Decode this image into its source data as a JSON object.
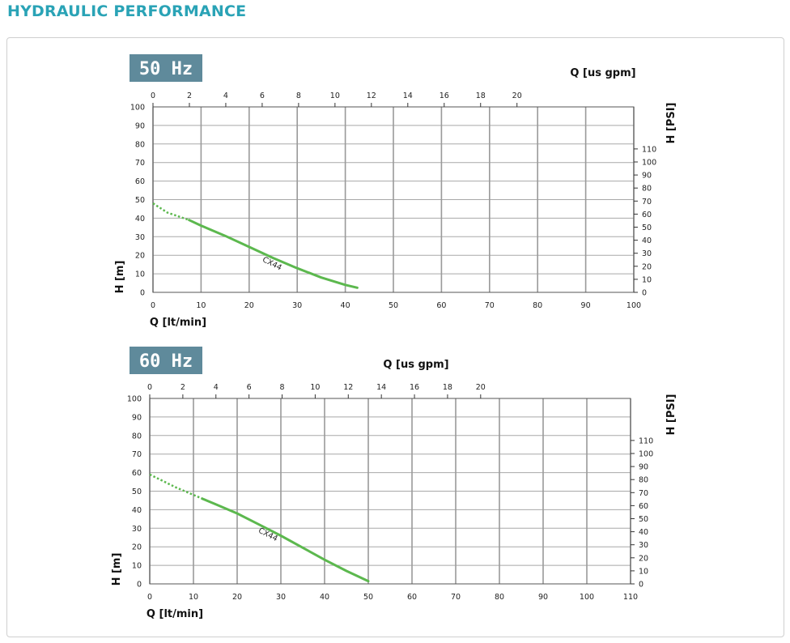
{
  "page": {
    "title": "HYDRAULIC PERFORMANCE"
  },
  "colors": {
    "title": "#2aa3b6",
    "badge": "#5f8a9b",
    "curve": "#5cb84e",
    "grid": "#999999",
    "text": "#222222"
  },
  "chart_data": [
    {
      "type": "line",
      "badge": "50 Hz",
      "xlabel": "Q [lt/min]",
      "ylabel": "H [m]",
      "x2label": "Q [us gpm]",
      "y2label": "H [PSI]",
      "xlim": [
        0,
        100
      ],
      "ylim": [
        0,
        100
      ],
      "x2lim": [
        0,
        26.417
      ],
      "y2lim": [
        0,
        142.23
      ],
      "xticks": [
        0,
        10,
        20,
        30,
        40,
        50,
        60,
        70,
        80,
        90,
        100
      ],
      "yticks": [
        0,
        10,
        20,
        30,
        40,
        50,
        60,
        70,
        80,
        90,
        100
      ],
      "x2ticks": [
        0,
        2,
        4,
        6,
        8,
        10,
        12,
        14,
        16,
        18,
        20
      ],
      "y2ticks": [
        0,
        10,
        20,
        30,
        40,
        50,
        60,
        70,
        80,
        90,
        100,
        110
      ],
      "grid": true,
      "series": [
        {
          "name": "CX44",
          "dashed_segment": {
            "x": [
              0,
              3,
              7.5
            ],
            "y": [
              48,
              43,
              39
            ]
          },
          "x": [
            7.5,
            10,
            15,
            20,
            25,
            30,
            35,
            40,
            42.5
          ],
          "y": [
            39,
            36,
            30.5,
            24.5,
            18.5,
            13,
            8,
            4,
            2.5
          ]
        }
      ]
    },
    {
      "type": "line",
      "badge": "60 Hz",
      "xlabel": "Q [lt/min]",
      "ylabel": "H [m]",
      "x2label": "Q [us gpm]",
      "y2label": "H [PSI]",
      "xlim": [
        0,
        110
      ],
      "ylim": [
        0,
        100
      ],
      "x2lim": [
        0,
        29.06
      ],
      "y2lim": [
        0,
        142.23
      ],
      "xticks": [
        0,
        10,
        20,
        30,
        40,
        50,
        60,
        70,
        80,
        90,
        100,
        110
      ],
      "yticks": [
        0,
        10,
        20,
        30,
        40,
        50,
        60,
        70,
        80,
        90,
        100
      ],
      "x2ticks": [
        0,
        2,
        4,
        6,
        8,
        10,
        12,
        14,
        16,
        18,
        20
      ],
      "y2ticks": [
        0,
        10,
        20,
        30,
        40,
        50,
        60,
        70,
        80,
        90,
        100,
        110
      ],
      "grid": true,
      "series": [
        {
          "name": "CX44",
          "dashed_segment": {
            "x": [
              0,
              6,
              12
            ],
            "y": [
              59,
              52,
              46
            ]
          },
          "x": [
            12,
            15,
            20,
            25,
            30,
            35,
            40,
            45,
            50
          ],
          "y": [
            46,
            43,
            38,
            32,
            26,
            19.5,
            13,
            7,
            1.5
          ]
        }
      ]
    }
  ]
}
